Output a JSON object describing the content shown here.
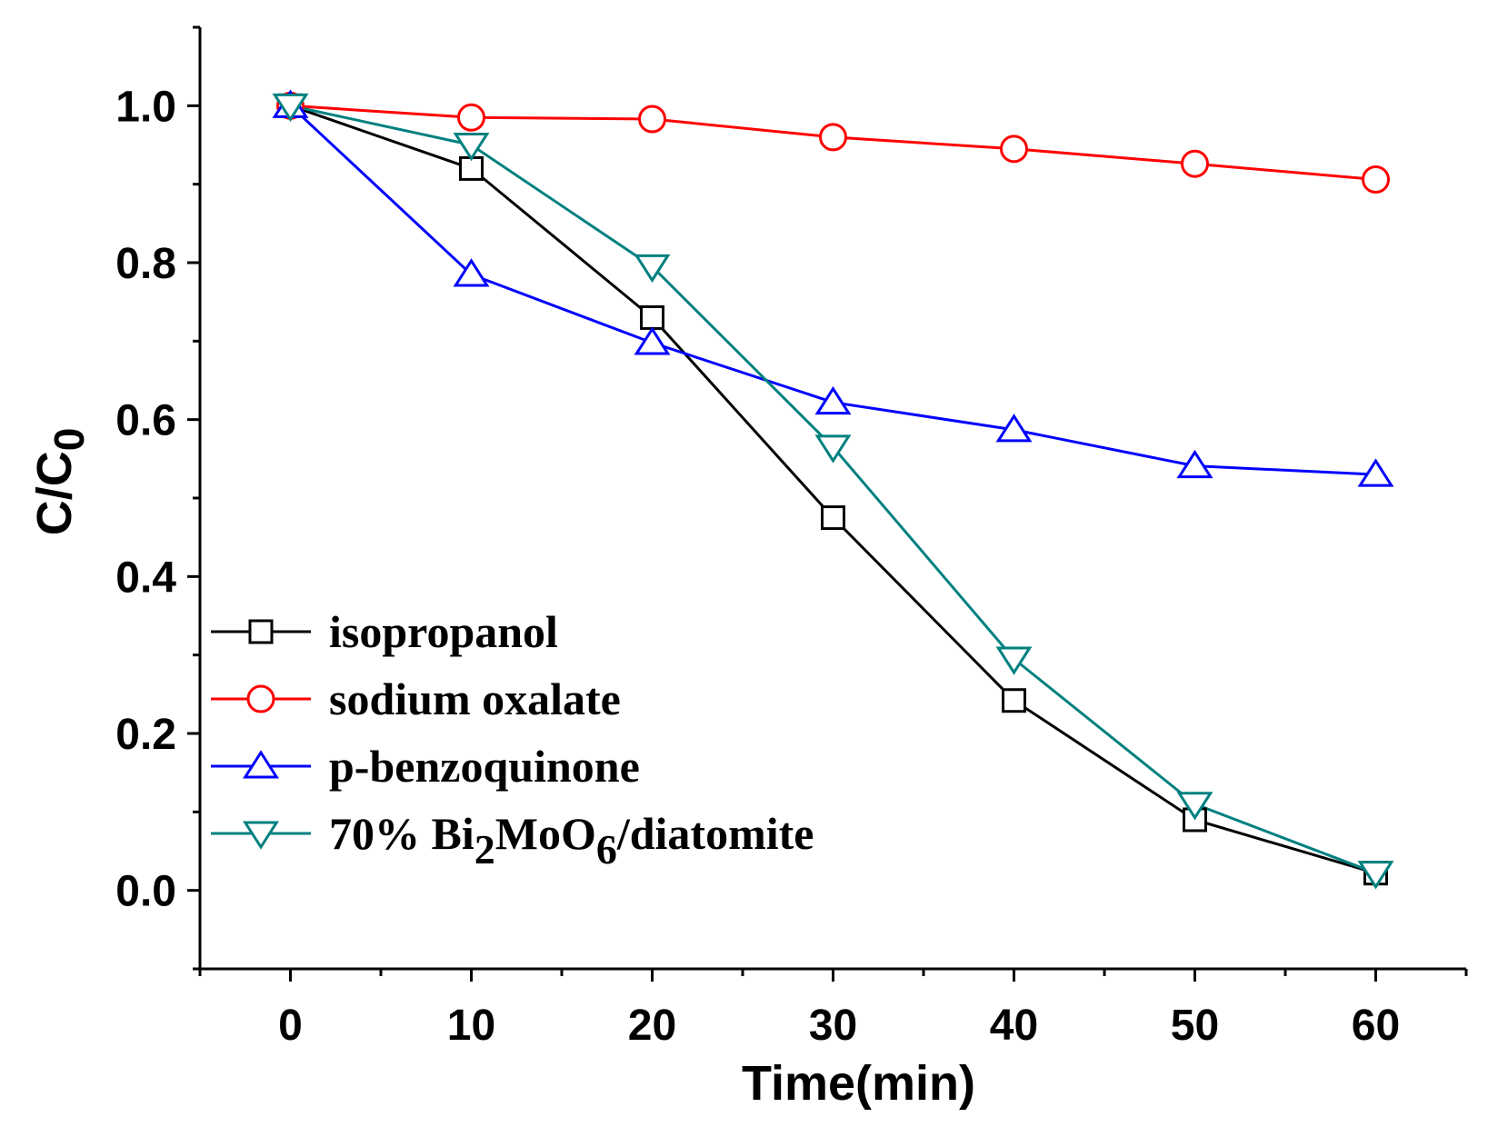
{
  "chart_data": {
    "type": "line",
    "title": "",
    "xlabel": "Time(min)",
    "ylabel": "C/C0",
    "ylabel_parts": {
      "main": "C/C",
      "sub": "0"
    },
    "xlim": [
      -5,
      65
    ],
    "ylim": [
      -0.1,
      1.1
    ],
    "xticks": [
      0,
      10,
      20,
      30,
      40,
      50,
      60
    ],
    "xtick_labels": [
      "0",
      "10",
      "20",
      "30",
      "40",
      "50",
      "60"
    ],
    "yticks": [
      0.0,
      0.2,
      0.4,
      0.6,
      0.8,
      1.0
    ],
    "ytick_labels": [
      "0.0",
      "0.2",
      "0.4",
      "0.6",
      "0.8",
      "1.0"
    ],
    "grid": false,
    "legend_position": "bottom-left",
    "x": [
      0,
      10,
      20,
      30,
      40,
      50,
      60
    ],
    "series": [
      {
        "name": "isopropanol",
        "name_parts": [
          {
            "t": "isopropanol"
          }
        ],
        "color": "#000000",
        "marker": "square",
        "values": [
          1.0,
          0.92,
          0.73,
          0.475,
          0.242,
          0.09,
          0.022
        ]
      },
      {
        "name": "sodium oxalate",
        "name_parts": [
          {
            "t": "sodium oxalate"
          }
        ],
        "color": "#ff0000",
        "marker": "circle",
        "values": [
          1.0,
          0.985,
          0.983,
          0.96,
          0.945,
          0.926,
          0.906
        ]
      },
      {
        "name": "p-benzoquinone",
        "name_parts": [
          {
            "t": "p-benzoquinone"
          }
        ],
        "color": "#0000ff",
        "marker": "triangle-up",
        "values": [
          1.0,
          0.785,
          0.698,
          0.622,
          0.587,
          0.541,
          0.53
        ]
      },
      {
        "name": "70% Bi2MoO6/diatomite",
        "name_parts": [
          {
            "t": "70% Bi"
          },
          {
            "t": "2",
            "sub": true
          },
          {
            "t": "MoO"
          },
          {
            "t": "6",
            "sub": true
          },
          {
            "t": "/diatomite"
          }
        ],
        "color": "#008080",
        "marker": "triangle-down",
        "values": [
          1.0,
          0.95,
          0.795,
          0.565,
          0.295,
          0.11,
          0.022
        ]
      }
    ]
  }
}
